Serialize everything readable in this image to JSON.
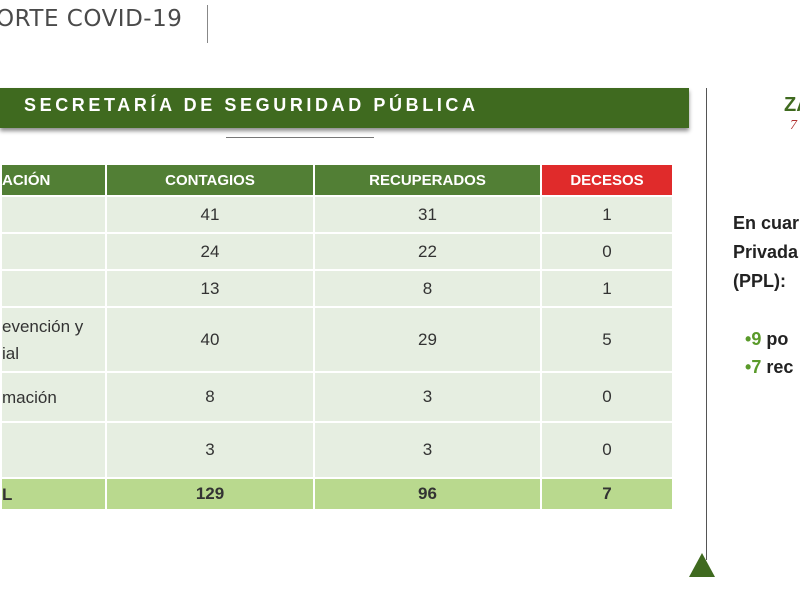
{
  "header": {
    "title": "ORTE COVID-19"
  },
  "banner": {
    "title": "SECRETARÍA DE SEGURIDAD PÚBLICA"
  },
  "table": {
    "columns": [
      "ACIÓN",
      "CONTAGIOS",
      "RECUPERADOS",
      "DECESOS"
    ],
    "rows": [
      {
        "name": "",
        "contagios": "41",
        "recuperados": "31",
        "decesos": "1"
      },
      {
        "name": "",
        "contagios": "24",
        "recuperados": "22",
        "decesos": "0"
      },
      {
        "name": "",
        "contagios": "13",
        "recuperados": "8",
        "decesos": "1"
      },
      {
        "name_line1": "evención y",
        "name_line2": "ial",
        "contagios": "40",
        "recuperados": "29",
        "decesos": "5"
      },
      {
        "name": "mación",
        "contagios": "8",
        "recuperados": "3",
        "decesos": "0"
      },
      {
        "name": "",
        "contagios": "3",
        "recuperados": "3",
        "decesos": "0"
      }
    ],
    "total": {
      "name": "L",
      "contagios": "129",
      "recuperados": "96",
      "decesos": "7"
    }
  },
  "side": {
    "logo": "ZA",
    "logo_sub": "7",
    "lines": [
      "En cuar",
      "Privada",
      "(PPL):"
    ],
    "bullets": [
      {
        "mark": "•",
        "num": "9",
        "text": " po"
      },
      {
        "mark": "•",
        "num": "7",
        "text": " rec"
      }
    ]
  },
  "colors": {
    "green_dark": "#3f6a1f",
    "green_header": "#527f35",
    "red": "#e02b2b",
    "row_bg": "#e6eee1",
    "total_bg": "#b9d98e"
  }
}
